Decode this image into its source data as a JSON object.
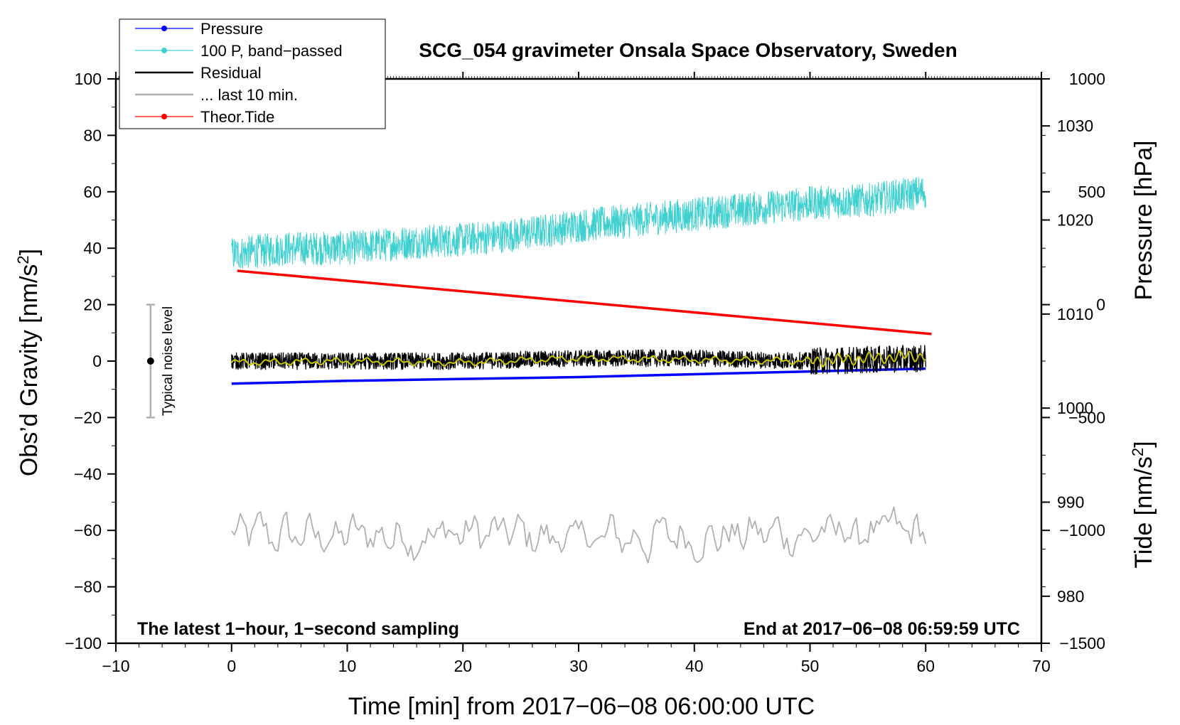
{
  "chart_data": {
    "type": "line",
    "title": "SCG_054 gravimeter Onsala Space Observatory, Sweden",
    "xlabel": "Time [min] from 2017−06−08 06:00:00 UTC",
    "ylabel_left": "Obs’d Gravity [nm/s",
    "ylabel_left_sup": "2",
    "ylabel_left_end": "]",
    "ylabel_pressure": "Pressure [hPa]",
    "ylabel_tide": "Tide [nm/s",
    "ylabel_tide_sup": "2",
    "ylabel_tide_end": "]",
    "xlim": [
      -10,
      70
    ],
    "ylim": [
      -100,
      100
    ],
    "pressure_lim": [
      975,
      1035
    ],
    "tide_lim": [
      -1500,
      1000
    ],
    "x_ticks": [
      -10,
      0,
      10,
      20,
      30,
      40,
      50,
      60,
      70
    ],
    "x_tick_labels": [
      "−10",
      "0",
      "10",
      "20",
      "30",
      "40",
      "50",
      "60",
      "70"
    ],
    "y_ticks": [
      -100,
      -80,
      -60,
      -40,
      -20,
      0,
      20,
      40,
      60,
      80,
      100
    ],
    "y_tick_labels": [
      "−100",
      "−80",
      "−60",
      "−40",
      "−20",
      "0",
      "20",
      "40",
      "60",
      "80",
      "100"
    ],
    "pressure_ticks": [
      980,
      990,
      1000,
      1010,
      1020,
      1030
    ],
    "pressure_tick_labels": [
      "980",
      "990",
      "1000",
      "1010",
      "1020",
      "1030"
    ],
    "tide_ticks": [
      -1500,
      -1000,
      -500,
      0,
      500,
      1000
    ],
    "tide_tick_labels": [
      "−1500",
      "−1000",
      "−500",
      "0",
      "500",
      "1000"
    ],
    "note_left": "The latest 1−hour, 1−second sampling",
    "note_right": "End at 2017−06−08 06:59:59 UTC",
    "noise_label": "Typical noise level",
    "noise_bar": {
      "x": -7,
      "center": 0,
      "low": -20,
      "high": 20
    },
    "legend": [
      {
        "label": "Pressure",
        "color": "#0000ff",
        "marker": true
      },
      {
        "label": "100 P, band−passed",
        "color": "#40d0d0",
        "marker": true
      },
      {
        "label": "Residual",
        "color": "#000000",
        "marker": false
      },
      {
        "label": "... last 10 min.",
        "color": "#b0b0b0",
        "marker": false
      },
      {
        "label": "Theor.Tide",
        "color": "#ff0000",
        "marker": true
      }
    ],
    "series": [
      {
        "name": "Pressure",
        "axis": "pressure",
        "color": "#0000ff",
        "x": [
          0,
          10,
          20,
          30,
          40,
          50,
          60
        ],
        "values": [
          1002.6,
          1002.9,
          1003.1,
          1003.3,
          1003.6,
          1003.9,
          1004.2
        ]
      },
      {
        "name": "100 P, band−passed",
        "axis": "left",
        "color": "#40d0d0",
        "x": [
          0,
          5,
          10,
          15,
          20,
          25,
          30,
          35,
          40,
          45,
          50,
          55,
          60
        ],
        "values": [
          38,
          40,
          40,
          42,
          43,
          45,
          48,
          50,
          52,
          54,
          56,
          57,
          60
        ],
        "noise_amplitude": 6
      },
      {
        "name": "Residual",
        "axis": "left",
        "color": "#000000",
        "x": [
          0,
          10,
          20,
          30,
          40,
          50,
          60
        ],
        "values": [
          0,
          0,
          0,
          1,
          1,
          0,
          1
        ],
        "noise_amplitude": 3
      },
      {
        "name": "Residual (smoothed)",
        "axis": "left",
        "color": "#c8c800",
        "x": [
          0,
          10,
          20,
          30,
          40,
          50,
          60
        ],
        "values": [
          -0.5,
          0,
          -0.5,
          1,
          0.5,
          0,
          2
        ]
      },
      {
        "name": "... last 10 min.",
        "axis": "left",
        "color": "#b0b0b0",
        "x": [
          0,
          10,
          20,
          30,
          40,
          50,
          60
        ],
        "values": [
          -62,
          -62,
          -61,
          -63,
          -62,
          -61,
          -61
        ],
        "noise_amplitude": 4
      },
      {
        "name": "Theor.Tide",
        "axis": "tide",
        "color": "#ff0000",
        "x": [
          0.5,
          60.5
        ],
        "values": [
          150,
          -130
        ]
      }
    ]
  }
}
